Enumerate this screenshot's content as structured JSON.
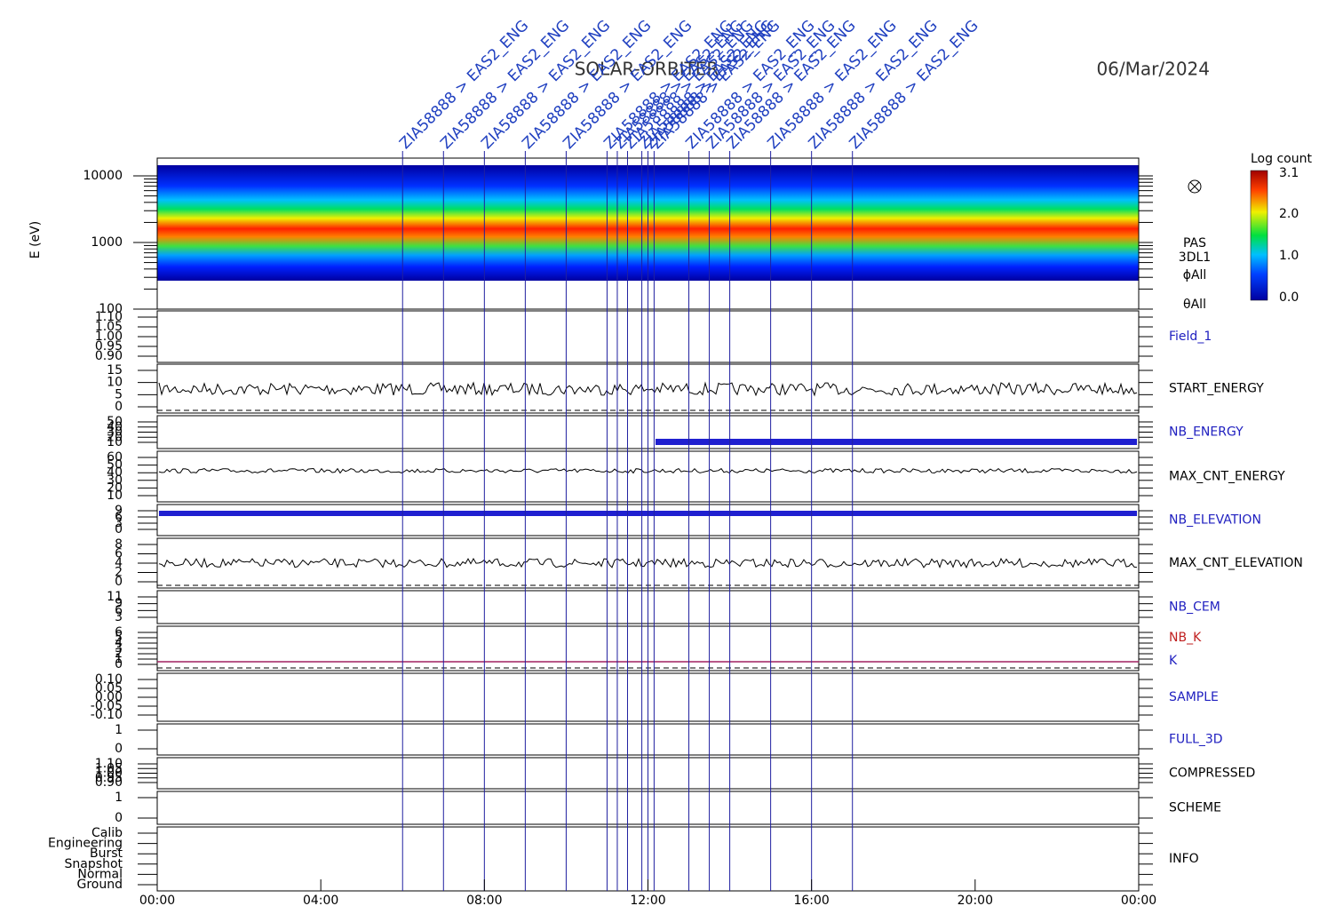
{
  "title": "SOLAR-ORBITER",
  "date": "06/Mar/2024",
  "x_ticks": [
    "00:00",
    "04:00",
    "08:00",
    "12:00",
    "16:00",
    "20:00",
    "00:00"
  ],
  "events": [
    {
      "label": "ZIA58888 > EAS2_ENG",
      "hour": 6
    },
    {
      "label": "ZIA58888 > EAS2_ENG",
      "hour": 7
    },
    {
      "label": "ZIA58888 > EAS2_ENG",
      "hour": 8
    },
    {
      "label": "ZIA58888 > EAS2_ENG",
      "hour": 9
    },
    {
      "label": "ZIA58888 > EAS2_ENG",
      "hour": 10
    },
    {
      "label": "ZIA58888 > EAS2_ENG",
      "hour": 11
    },
    {
      "label": "ZIA58888 > EAS2_ENG",
      "hour": 11.25
    },
    {
      "label": "ZIA58888 > EAS2_ENG",
      "hour": 11.5
    },
    {
      "label": "ZIA58888 > EAS2_ENG",
      "hour": 11.85
    },
    {
      "label": "ZIA58888 > EAS2_ENG",
      "hour": 12
    },
    {
      "label": "ZIA58888 > EAS2_ENG",
      "hour": 12.15
    },
    {
      "label": "ZIA58888 > EAS2_ENG",
      "hour": 13
    },
    {
      "label": "ZIA58888 > EAS2_ENG",
      "hour": 13.5
    },
    {
      "label": "ZIA58888 > EAS2_ENG",
      "hour": 14
    },
    {
      "label": "ZIA58888 > EAS2_ENG",
      "hour": 15
    },
    {
      "label": "ZIA58888 > EAS2_ENG",
      "hour": 16
    },
    {
      "label": "ZIA58888 > EAS2_ENG",
      "hour": 17
    }
  ],
  "spectrogram": {
    "ylabel": "E (eV)",
    "yticks": [
      "10000",
      "1000",
      "100"
    ],
    "labels": [
      "PAS",
      "3DL1",
      "ϕAll",
      "θAll"
    ],
    "colorbar": {
      "title": "Log count",
      "ticks": [
        "3.1",
        "2.0",
        "1.0",
        "0.0"
      ]
    }
  },
  "panels": [
    {
      "name": "Field_1",
      "color": "#2020c0",
      "ticks": [
        "1.10",
        "1.05",
        "1.00",
        "0.95",
        "0.90"
      ]
    },
    {
      "name": "START_ENERGY",
      "color": "#000000",
      "ticks": [
        "15",
        "10",
        "5",
        "0"
      ]
    },
    {
      "name": "NB_ENERGY",
      "color": "#2020c0",
      "ticks": [
        "50",
        "40",
        "30",
        "20",
        "10"
      ]
    },
    {
      "name": "MAX_CNT_ENERGY",
      "color": "#000000",
      "ticks": [
        "60",
        "50",
        "40",
        "30",
        "20",
        "10"
      ]
    },
    {
      "name": "NB_ELEVATION",
      "color": "#2020c0",
      "ticks": [
        "9",
        "6",
        "3",
        "0"
      ]
    },
    {
      "name": "MAX_CNT_ELEVATION",
      "color": "#000000",
      "ticks": [
        "8",
        "6",
        "4",
        "2",
        "0"
      ]
    },
    {
      "name": "NB_CEM",
      "color": "#2020c0",
      "ticks": [
        "11",
        "9",
        "6",
        "3"
      ]
    },
    {
      "name": "NB_K",
      "color": "#c02020",
      "second": "K",
      "ticks": [
        "6",
        "5",
        "4",
        "3",
        "2",
        "1",
        "0"
      ]
    },
    {
      "name": "SAMPLE",
      "color": "#2020c0",
      "ticks": [
        "0.10",
        "0.05",
        "0.00",
        "-0.05",
        "-0.10"
      ]
    },
    {
      "name": "FULL_3D",
      "color": "#2020c0",
      "ticks": [
        "1",
        "0"
      ]
    },
    {
      "name": "COMPRESSED",
      "color": "#000000",
      "ticks": [
        "1.10",
        "1.05",
        "1.00",
        "0.95",
        "0.90"
      ]
    },
    {
      "name": "SCHEME",
      "color": "#000000",
      "ticks": [
        "1",
        "0"
      ]
    },
    {
      "name": "INFO",
      "color": "#000000",
      "ticks": [
        "Calib",
        "Engineering",
        "Burst",
        "Snapshot",
        "Normal",
        "Ground"
      ]
    }
  ]
}
